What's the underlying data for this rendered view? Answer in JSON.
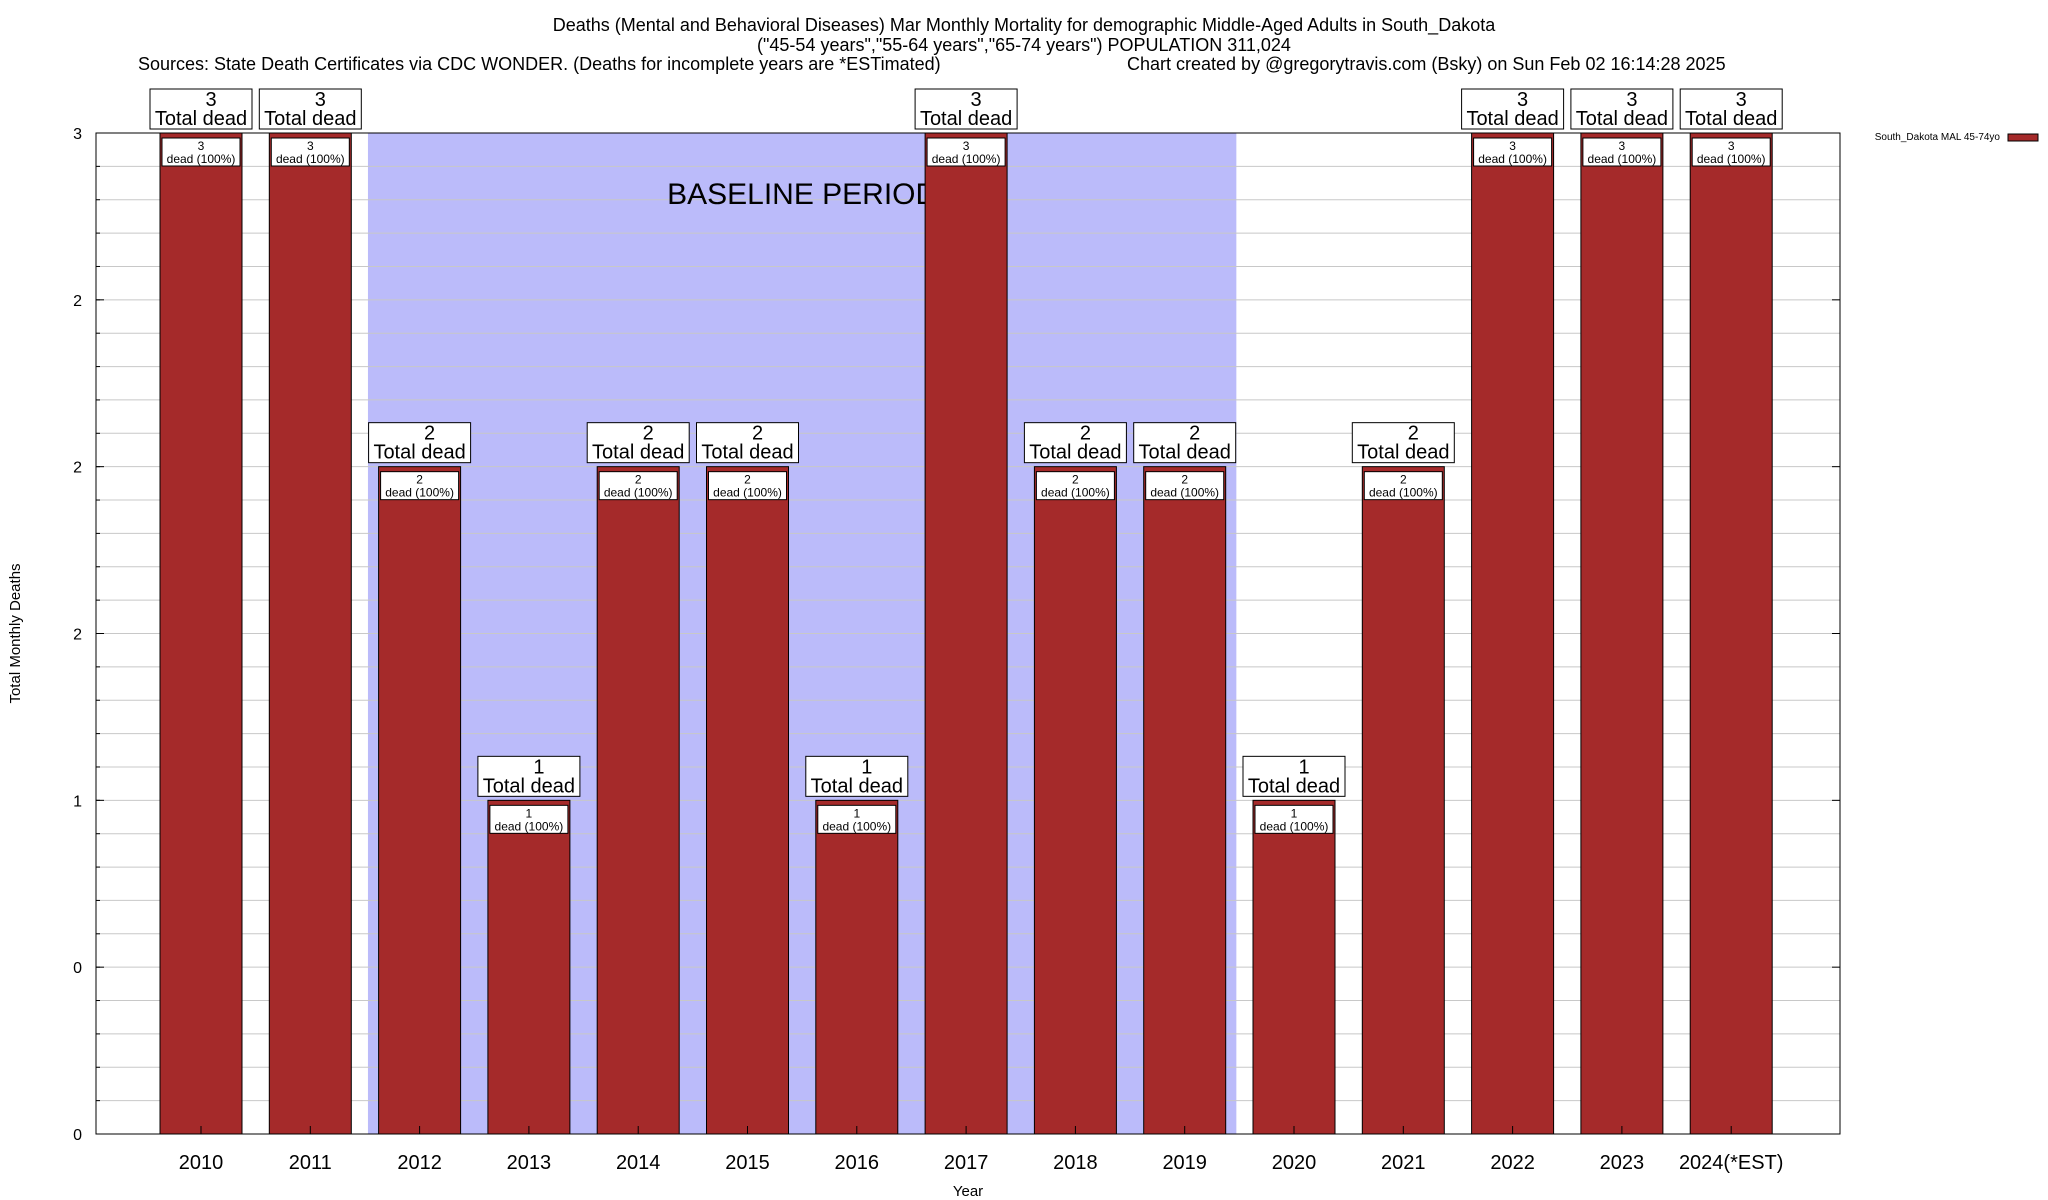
{
  "header": {
    "title_line1": "Deaths (Mental and Behavioral Diseases) Mar Monthly Mortality for demographic Middle-Aged Adults in South_Dakota",
    "title_line2": "(\"45-54 years\",\"55-64 years\",\"65-74 years\") POPULATION 311,024",
    "sources": "Sources: State Death Certificates via CDC WONDER. (Deaths for incomplete years are *ESTimated)",
    "credit": "Chart created by @gregorytravis.com (Bsky) on Sun Feb 02 16:14:28 2025"
  },
  "chart_data": {
    "type": "bar",
    "categories": [
      "2010",
      "2011",
      "2012",
      "2013",
      "2014",
      "2015",
      "2016",
      "2017",
      "2018",
      "2019",
      "2020",
      "2021",
      "2022",
      "2023",
      "2024(*EST)"
    ],
    "series": [
      {
        "name": "South_Dakota MAL 45-74yo",
        "color": "#a52a2a",
        "values": [
          3,
          3,
          2,
          1,
          2,
          2,
          1,
          3,
          2,
          2,
          1,
          2,
          3,
          3,
          3
        ]
      }
    ],
    "total_label_suffix": "Total dead",
    "inner_label_suffix": "dead (100%)",
    "xlabel": "Year",
    "ylabel": "Total Monthly Deaths",
    "ylim": [
      0,
      3
    ],
    "y_tick_labels": [
      "0",
      "0",
      "1",
      "2",
      "2",
      "2",
      "3"
    ],
    "baseline_label": "BASELINE PERIOD",
    "baseline_range": [
      "2012",
      "2019"
    ],
    "baseline_color": "#bbbbfa",
    "grid": true,
    "legend_position": "top-right"
  }
}
